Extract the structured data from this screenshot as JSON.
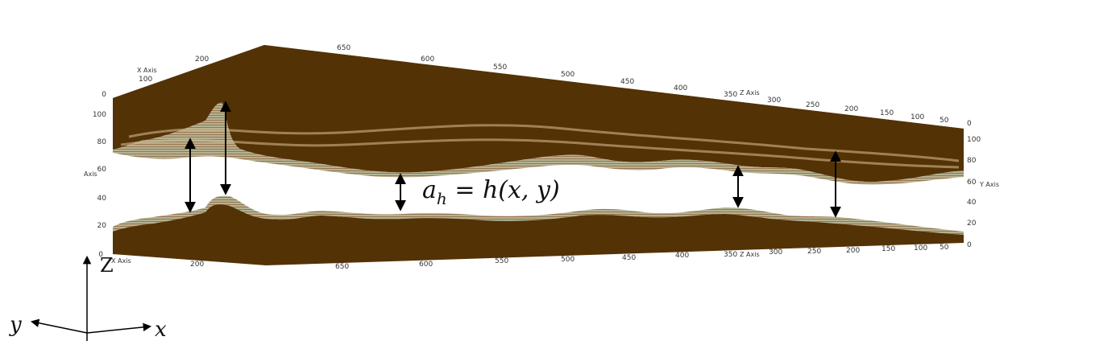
{
  "labels": {
    "x_axis": "X Axis",
    "z_axis": "Z Axis",
    "y_axis": "Y Axis",
    "y_axis_left": "Axis",
    "aperture_lhs": "a",
    "aperture_sub": "h",
    "aperture_rhs": " = h(x, y)"
  },
  "coord_frame": {
    "z": "Z",
    "y": "y",
    "x": "x"
  },
  "ticks": {
    "top_x": [
      "200",
      "100"
    ],
    "top_z": [
      "650",
      "600",
      "550",
      "500",
      "450",
      "400",
      "350",
      "300",
      "250",
      "200",
      "150",
      "100",
      "50"
    ],
    "bottom_x": [
      "200"
    ],
    "bottom_z": [
      "650",
      "600",
      "550",
      "500",
      "450",
      "400",
      "350",
      "300",
      "250",
      "200",
      "150",
      "100",
      "50"
    ],
    "left_y": [
      "0",
      "100",
      "80",
      "60",
      "40",
      "20",
      "0"
    ],
    "right_y": [
      "0",
      "100",
      "80",
      "60",
      "40",
      "20",
      "0"
    ]
  },
  "colors": {
    "rock": "#533206",
    "rock_edge": "#6b4a1f",
    "fracture_highlight": "#8fd0c8",
    "fracture_tan": "#b89466",
    "arrow": "#000000"
  }
}
